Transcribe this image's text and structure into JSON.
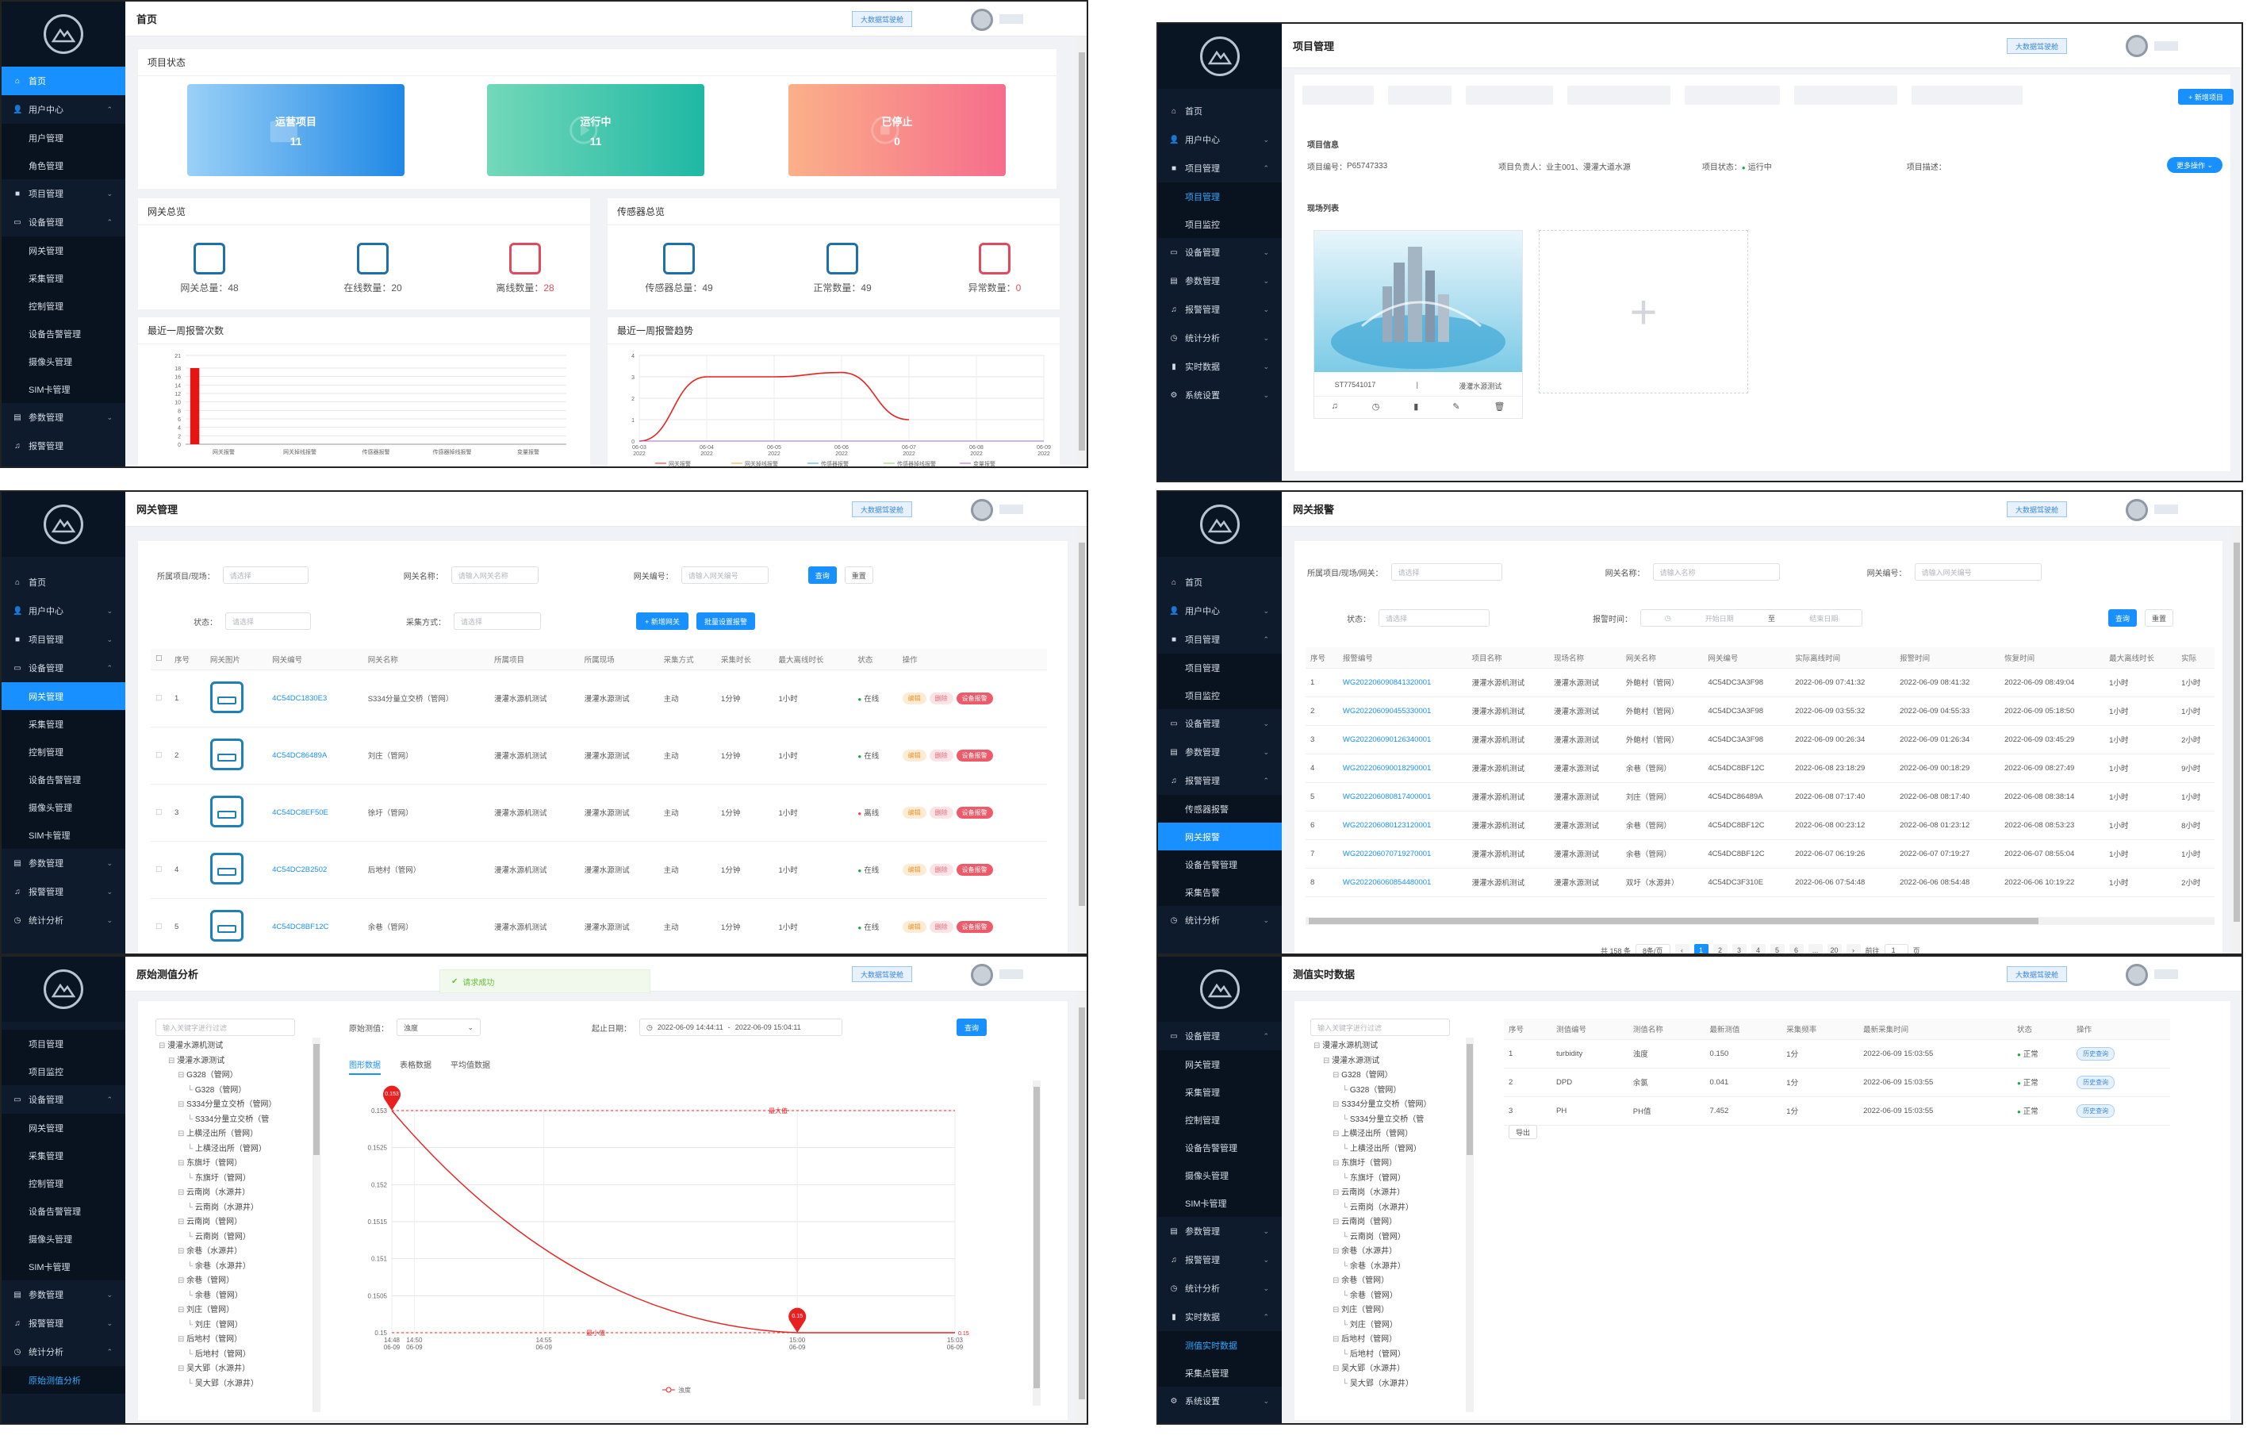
{
  "colors": {
    "sidebar": "#0e1b2c",
    "accent": "#1890ff",
    "blue_card": "#2c8ce8",
    "teal_card": "#2bbfa3",
    "pink_card": "#f27d8c",
    "bar": "#e81414"
  },
  "common": {
    "big_screen_button": "大数据驾驶舱",
    "nav": {
      "home": "首页",
      "user_center": "用户中心",
      "user_mgmt": "用户管理",
      "role_mgmt": "角色管理",
      "project_mgmt": "项目管理",
      "project_monitor": "项目监控",
      "device_mgmt": "设备管理",
      "gateway_mgmt": "网关管理",
      "sensor_mgmt": "采集管理",
      "control_mgmt": "控制管理",
      "device_alarm_mgmt": "设备告警管理",
      "camera_mgmt": "摄像头管理",
      "sim_mgmt": "SIM卡管理",
      "param_mgmt": "参数管理",
      "alarm_mgmt": "报警管理",
      "stat_analysis": "统计分析",
      "realtime": "实时数据",
      "system_settings": "系统设置",
      "sensor_alarm": "传感器报警",
      "gateway_alarm": "网关报警",
      "device_alarm": "设备告警管理",
      "collect_alarm": "采集告警",
      "raw_analysis": "原始测值分析",
      "point_realtime": "测值实时数据",
      "collect_mgmt": "采集点管理"
    }
  },
  "home": {
    "title": "首页",
    "project_status": "项目状态",
    "cards": [
      {
        "label": "运营项目",
        "value": "11"
      },
      {
        "label": "运行中",
        "value": "11"
      },
      {
        "label": "已停止",
        "value": "0"
      }
    ],
    "gateway_overview": "网关总览",
    "gateway_stats": [
      {
        "label": "网关总量：",
        "value": "48"
      },
      {
        "label": "在线数量：",
        "value": "20"
      },
      {
        "label": "离线数量：",
        "value": "28"
      }
    ],
    "sensor_overview": "传感器总览",
    "sensor_stats": [
      {
        "label": "传感器总量：",
        "value": "49"
      },
      {
        "label": "正常数量：",
        "value": "49"
      },
      {
        "label": "异常数量：",
        "value": "0"
      }
    ],
    "alarm_count_title": "最近一周报警次数",
    "alarm_trend_title": "最近一周报警趋势"
  },
  "chart_data": [
    {
      "type": "bar",
      "title": "最近一周报警次数",
      "categories": [
        "网关报警",
        "网关掉线报警",
        "传感器报警",
        "传感器掉线报警",
        "变量报警"
      ],
      "values": [
        18,
        0,
        0,
        0,
        0
      ],
      "yticks": [
        "0",
        "2",
        "4",
        "6",
        "8",
        "10",
        "12",
        "14",
        "16",
        "18",
        "21"
      ],
      "ylim": [
        0,
        21
      ]
    },
    {
      "type": "line",
      "title": "最近一周报警趋势",
      "x": [
        "06-03\n2022",
        "06-04\n2022",
        "06-05\n2022",
        "06-06\n2022",
        "06-07\n2022",
        "06-08\n2022",
        "06-09\n2022"
      ],
      "ylim": [
        0,
        4
      ],
      "yticks": [
        "0",
        "1",
        "2",
        "3",
        "4"
      ],
      "series": [
        {
          "name": "网关报警",
          "values": [
            0,
            3,
            3,
            3.2,
            1,
            null,
            null
          ]
        },
        {
          "name": "网关掉线报警",
          "values": [
            0,
            0,
            0,
            0,
            0,
            0,
            0
          ]
        },
        {
          "name": "传感器报警",
          "values": [
            0,
            0,
            0,
            0,
            0,
            0,
            0
          ]
        },
        {
          "name": "传感器掉线报警",
          "values": [
            0,
            0,
            0,
            0,
            0,
            0,
            0
          ]
        },
        {
          "name": "变量报警",
          "values": [
            0,
            0,
            0,
            0,
            0,
            0,
            0
          ]
        }
      ]
    },
    {
      "type": "line",
      "title": "",
      "x": [
        "14:48\n06-09",
        "14:50\n06-09",
        "14:55\n06-09",
        "15:00\n06-09",
        "15:03\n06-09"
      ],
      "ylim": [
        0.15,
        0.153
      ],
      "yticks": [
        "0.15",
        "0.1505",
        "0.151",
        "0.1515",
        "0.152",
        "0.1525",
        "0.153"
      ],
      "series": [
        {
          "name": "浊度",
          "values": [
            0.153,
            null,
            null,
            0.15,
            0.15
          ]
        }
      ],
      "annotations": {
        "max_label": "最大值",
        "min_label": "最小值",
        "max_pin": "0.153",
        "min_pin": "0.15",
        "end_value": "0.15"
      }
    }
  ],
  "project": {
    "title": "项目管理",
    "add_button": "+ 新增项目",
    "info_title": "项目信息",
    "project_no_label": "项目编号：",
    "project_no": "P65747333",
    "leader_label": "项目负责人：",
    "leader": "业主001、漫灌大道水源",
    "state_label": "项目状态：",
    "state": "运行中",
    "desc_label": "项目描述：",
    "more_button": "更多操作",
    "list_title": "现场列表",
    "site_code": "ST77541017",
    "site_name": "漫灌水源测试",
    "add_plus": "+"
  },
  "gateway": {
    "title": "网关管理",
    "filters": {
      "project_label": "所属项目/现场：",
      "project_ph": "请选择",
      "name_label": "网关名称：",
      "name_ph": "请输入网关名称",
      "no_label": "网关编号：",
      "no_ph": "请输入网关编号",
      "state_label": "状态：",
      "state_ph": "请选择",
      "mode_label": "采集方式：",
      "mode_ph": "请选择",
      "search": "查询",
      "reset": "重置",
      "add": "+ 新增网关",
      "batch": "批量设置报警"
    },
    "columns": [
      "序号",
      "网关图片",
      "网关编号",
      "网关名称",
      "所属项目",
      "所属现场",
      "采集方式",
      "采集时长",
      "最大离线时长",
      "状态",
      "操作"
    ],
    "rows": [
      {
        "i": "1",
        "code": "4C54DC1830E3",
        "name": "S334分量立交桥（管网）",
        "project": "漫灌水源机测试",
        "site": "漫灌水源测试",
        "mode": "主动",
        "interval": "1分钟",
        "offline": "1小时",
        "state": "在线",
        "ok": true
      },
      {
        "i": "2",
        "code": "4C54DC86489A",
        "name": "刘庄（管网）",
        "project": "漫灌水源机测试",
        "site": "漫灌水源测试",
        "mode": "主动",
        "interval": "1分钟",
        "offline": "1小时",
        "state": "在线",
        "ok": true
      },
      {
        "i": "3",
        "code": "4C54DC8EF50E",
        "name": "徐圩（管网）",
        "project": "漫灌水源机测试",
        "site": "漫灌水源测试",
        "mode": "主动",
        "interval": "1分钟",
        "offline": "1小时",
        "state": "离线",
        "ok": false
      },
      {
        "i": "4",
        "code": "4C54DC2B2502",
        "name": "后地村（管网）",
        "project": "漫灌水源机测试",
        "site": "漫灌水源测试",
        "mode": "主动",
        "interval": "1分钟",
        "offline": "1小时",
        "state": "在线",
        "ok": true
      },
      {
        "i": "5",
        "code": "4C54DC8BF12C",
        "name": "余巷（管网）",
        "project": "漫灌水源机测试",
        "site": "漫灌水源测试",
        "mode": "主动",
        "interval": "1分钟",
        "offline": "1小时",
        "state": "在线",
        "ok": true
      }
    ],
    "ops": [
      "编辑",
      "删除",
      "设备报警"
    ]
  },
  "gw_alarm": {
    "title": "网关报警",
    "filters": {
      "project_label": "所属项目/现场/网关：",
      "project_ph": "请选择",
      "name_label": "网关名称：",
      "name_ph": "请输入名称",
      "no_label": "网关编号：",
      "no_ph": "请输入网关编号",
      "state_label": "状态：",
      "state_ph": "请选择",
      "time_label": "报警时间：",
      "start_ph": "开始日期",
      "to": "至",
      "end_ph": "结束日期",
      "search": "查询",
      "reset": "重置"
    },
    "columns": [
      "序号",
      "报警编号",
      "项目名称",
      "现场名称",
      "网关名称",
      "网关编号",
      "实际离线时间",
      "报警时间",
      "恢复时间",
      "最大离线时长",
      "实际"
    ],
    "rows": [
      {
        "i": "1",
        "no": "WG202206090841320001",
        "proj": "漫灌水源机测试",
        "site": "漫灌水源测试",
        "gw": "外鲍村（管网）",
        "code": "4C54DC3A3F98",
        "t1": "2022-06-09 07:41:32",
        "t2": "2022-06-09 08:41:32",
        "t3": "2022-06-09 08:49:04",
        "max": "1小时",
        "act": "1小时"
      },
      {
        "i": "2",
        "no": "WG202206090455330001",
        "proj": "漫灌水源机测试",
        "site": "漫灌水源测试",
        "gw": "外鲍村（管网）",
        "code": "4C54DC3A3F98",
        "t1": "2022-06-09 03:55:32",
        "t2": "2022-06-09 04:55:33",
        "t3": "2022-06-09 05:18:50",
        "max": "1小时",
        "act": "1小时"
      },
      {
        "i": "3",
        "no": "WG202206090126340001",
        "proj": "漫灌水源机测试",
        "site": "漫灌水源测试",
        "gw": "外鲍村（管网）",
        "code": "4C54DC3A3F98",
        "t1": "2022-06-09 00:26:34",
        "t2": "2022-06-09 01:26:34",
        "t3": "2022-06-09 03:45:29",
        "max": "1小时",
        "act": "2小时"
      },
      {
        "i": "4",
        "no": "WG202206090018290001",
        "proj": "漫灌水源机测试",
        "site": "漫灌水源测试",
        "gw": "余巷（管网）",
        "code": "4C54DC8BF12C",
        "t1": "2022-06-08 23:18:29",
        "t2": "2022-06-09 00:18:29",
        "t3": "2022-06-09 08:27:49",
        "max": "1小时",
        "act": "9小时"
      },
      {
        "i": "5",
        "no": "WG202206080817400001",
        "proj": "漫灌水源机测试",
        "site": "漫灌水源测试",
        "gw": "刘庄（管网）",
        "code": "4C54DC86489A",
        "t1": "2022-06-08 07:17:40",
        "t2": "2022-06-08 08:17:40",
        "t3": "2022-06-08 08:38:14",
        "max": "1小时",
        "act": "1小时"
      },
      {
        "i": "6",
        "no": "WG202206080123120001",
        "proj": "漫灌水源机测试",
        "site": "漫灌水源测试",
        "gw": "余巷（管网）",
        "code": "4C54DC8BF12C",
        "t1": "2022-06-08 00:23:12",
        "t2": "2022-06-08 01:23:12",
        "t3": "2022-06-08 08:53:23",
        "max": "1小时",
        "act": "8小时"
      },
      {
        "i": "7",
        "no": "WG202206070719270001",
        "proj": "漫灌水源机测试",
        "site": "漫灌水源测试",
        "gw": "余巷（管网）",
        "code": "4C54DC8BF12C",
        "t1": "2022-06-07 06:19:26",
        "t2": "2022-06-07 07:19:27",
        "t3": "2022-06-07 08:55:04",
        "max": "1小时",
        "act": "1小时"
      },
      {
        "i": "8",
        "no": "WG202206060854480001",
        "proj": "漫灌水源机测试",
        "site": "漫灌水源测试",
        "gw": "双圩（水源井）",
        "code": "4C54DC3F310E",
        "t1": "2022-06-06 07:54:48",
        "t2": "2022-06-06 08:54:48",
        "t3": "2022-06-06 10:19:22",
        "max": "1小时",
        "act": "2小时"
      }
    ],
    "pager": {
      "total": "共 158 条",
      "size": "8条/页",
      "pages": [
        "1",
        "2",
        "3",
        "4",
        "5",
        "6",
        "...",
        "20"
      ],
      "goto": "前往",
      "page": "1",
      "unit": "页"
    }
  },
  "raw": {
    "title": "原始测值分析",
    "toast": "请求成功",
    "tree_ph": "输入关键字进行过滤",
    "point_label": "原始测值：",
    "point_value": "浊度",
    "date_label": "起止日期：",
    "date_from": "2022-06-09 14:44:11",
    "date_to": "2022-06-09 15:04:11",
    "search": "查询",
    "tabs": [
      "图形数据",
      "表格数据",
      "平均值数据"
    ]
  },
  "tree": [
    "漫灌水源机测试",
    "漫灌水源测试",
    "G328（管网）",
    "G328（管网）",
    "S334分量立交桥（管网）",
    "S334分量立交桥（管",
    "上横泾出所（管网）",
    "上横泾出所（管网）",
    "东旗圩（管网）",
    "东旗圩（管网）",
    "云南岗（水源井）",
    "云南岗（水源井）",
    "云南岗（管网）",
    "云南岗（管网）",
    "余巷（水源井）",
    "余巷（水源井）",
    "余巷（管网）",
    "余巷（管网）",
    "刘庄（管网）",
    "刘庄（管网）",
    "后地村（管网）",
    "后地村（管网）",
    "吴大郢（水源井）",
    "吴大郢（水源井）"
  ],
  "realtime": {
    "title": "测值实时数据",
    "tree_ph": "输入关键字进行过滤",
    "columns": [
      "序号",
      "测值编号",
      "测值名称",
      "最新测值",
      "采集频率",
      "最新采集时间",
      "状态",
      "操作"
    ],
    "rows": [
      {
        "i": "1",
        "code": "turbidity",
        "name": "浊度",
        "val": "0.150",
        "freq": "1分",
        "time": "2022-06-09 15:03:55",
        "state": "正常",
        "op": "历史查询"
      },
      {
        "i": "2",
        "code": "DPD",
        "name": "余氯",
        "val": "0.041",
        "freq": "1分",
        "time": "2022-06-09 15:03:55",
        "state": "正常",
        "op": "历史查询"
      },
      {
        "i": "3",
        "code": "PH",
        "name": "PH值",
        "val": "7.452",
        "freq": "1分",
        "time": "2022-06-09 15:03:55",
        "state": "正常",
        "op": "历史查询"
      }
    ],
    "export": "导出"
  }
}
